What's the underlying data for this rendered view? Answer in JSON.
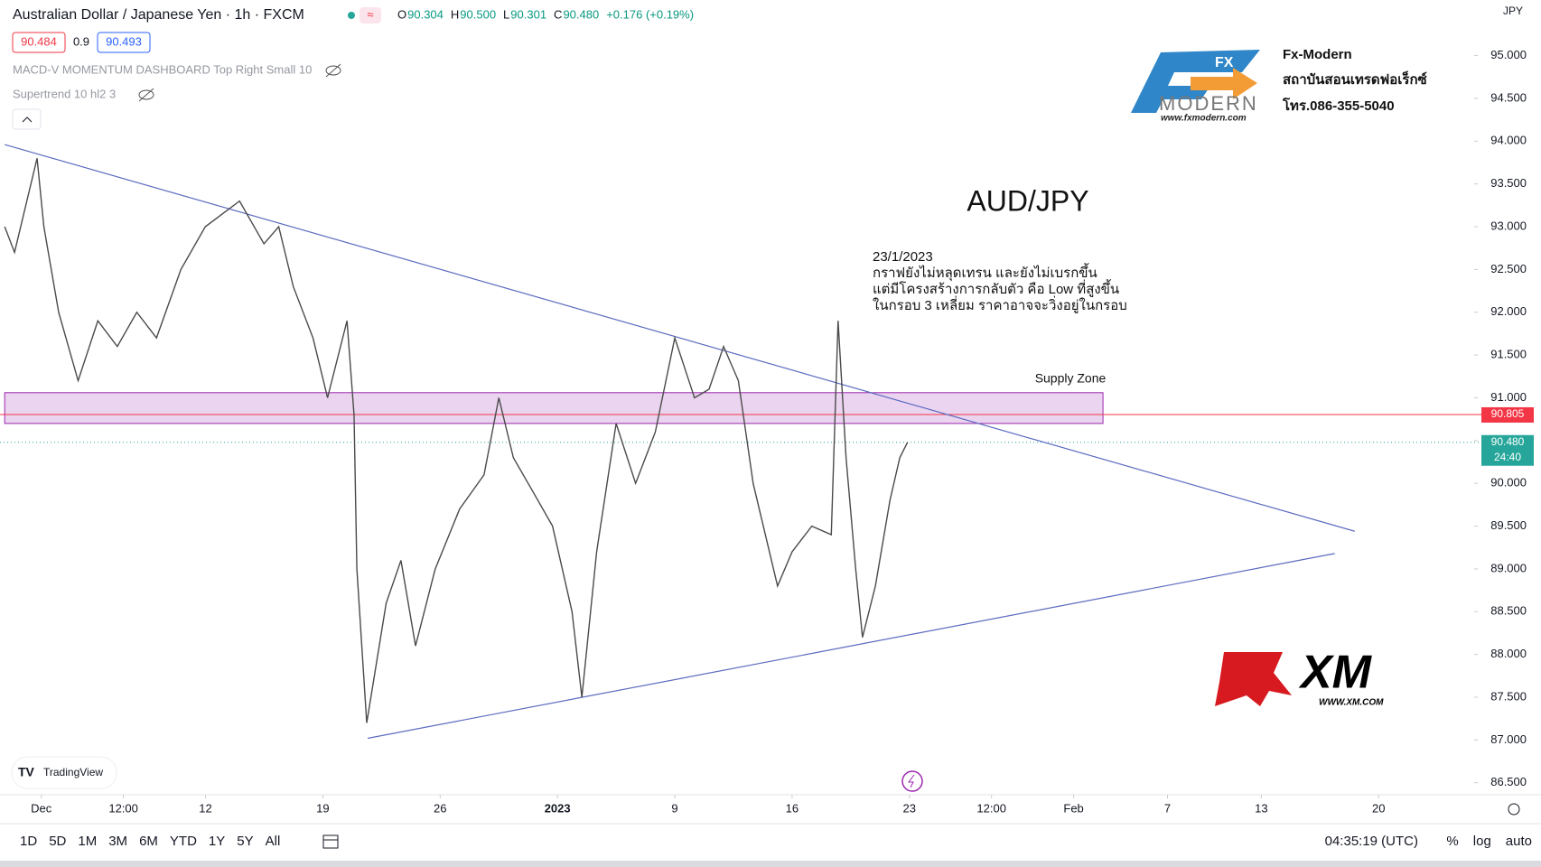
{
  "header": {
    "symbol": "Australian Dollar / Japanese Yen · 1h · FXCM",
    "ohlc": [
      {
        "k": "O",
        "v": "90.304"
      },
      {
        "k": "H",
        "v": "90.500"
      },
      {
        "k": "L",
        "v": "90.301"
      },
      {
        "k": "C",
        "v": "90.480"
      }
    ],
    "change": "+0.176 (+0.19%)",
    "bid": "90.484",
    "spread": "0.9",
    "ask": "90.493",
    "indicators": [
      "MACD-V MOMENTUM DASHBOARD Top Right Small 10",
      "Supertrend 10 hl2 3"
    ],
    "currency": "JPY"
  },
  "logos": {
    "fx_brand": "FX",
    "fx_sub": "MODERN",
    "fx_url": "www.fxmodern.com",
    "fx_lines": [
      "Fx-Modern",
      "สถาบันสอนเทรดฟอเร็กซ์",
      "โทร.086-355-5040"
    ],
    "xm": "XM",
    "xm_url": "WWW.XM.COM",
    "tradingview": "TradingView"
  },
  "chart_data": {
    "type": "line",
    "title": "AUD/JPY",
    "color": "#4a4a4a",
    "annotation": [
      "23/1/2023",
      "กราฟยังไม่หลุดเทรน และยังไม่เบรกขึ้น",
      "แต่มีโครงสร้างการกลับตัว คือ Low ที่สูงขึ้น",
      "ในกรอบ 3 เหลี่ยม ราคาอาจจะวิ่งอยู่ในกรอบ"
    ],
    "supply_zone_label": "Supply Zone",
    "x": [
      -1.56,
      -1.14,
      -0.18,
      0.11,
      0.74,
      1.57,
      2.41,
      3.24,
      4.07,
      4.91,
      5.95,
      6.99,
      8.45,
      9.49,
      10.12,
      10.74,
      11.58,
      12.2,
      13.03,
      13.33,
      13.45,
      13.87,
      14.7,
      15.33,
      15.95,
      16.79,
      17.83,
      18.87,
      19.5,
      20.12,
      20.96,
      21.79,
      22.62,
      23.04,
      23.67,
      24.5,
      25.33,
      26.17,
      27.0,
      27.84,
      28.46,
      29.08,
      29.71,
      30.34,
      31.38,
      32.0,
      32.84,
      33.67,
      33.96,
      34.3,
      34.71,
      35.0,
      35.55,
      36.17,
      36.59,
      36.92
    ],
    "values": [
      93.0,
      92.7,
      93.8,
      93.0,
      92.0,
      91.2,
      91.9,
      91.6,
      92.0,
      91.7,
      92.5,
      93.0,
      93.3,
      92.8,
      93.0,
      92.3,
      91.7,
      91.0,
      91.9,
      90.8,
      89.0,
      87.2,
      88.6,
      89.1,
      88.1,
      89.0,
      89.7,
      90.1,
      91.0,
      90.3,
      89.9,
      89.5,
      88.5,
      87.5,
      89.2,
      90.7,
      90.0,
      90.6,
      91.7,
      91.0,
      91.1,
      91.6,
      91.2,
      90.0,
      88.8,
      89.2,
      89.5,
      89.4,
      91.9,
      90.3,
      89.0,
      88.2,
      88.8,
      89.8,
      90.3,
      90.48
    ],
    "xlim": [
      -1.76,
      61.07
    ],
    "ylim": [
      86.36,
      95.65
    ],
    "xticks": [
      {
        "value": 0,
        "label": "Dec"
      },
      {
        "value": 3.5,
        "label": "12:00"
      },
      {
        "value": 7,
        "label": "12"
      },
      {
        "value": 12,
        "label": "19"
      },
      {
        "value": 17,
        "label": "26"
      },
      {
        "value": 22,
        "label": "2023"
      },
      {
        "value": 27,
        "label": "9"
      },
      {
        "value": 32,
        "label": "16"
      },
      {
        "value": 37,
        "label": "23"
      },
      {
        "value": 40.5,
        "label": "12:00"
      },
      {
        "value": 44,
        "label": "Feb"
      },
      {
        "value": 48,
        "label": "7"
      },
      {
        "value": 52,
        "label": "13"
      },
      {
        "value": 57,
        "label": "20"
      }
    ],
    "yticks": [
      {
        "value": 86.5,
        "label": "86.500"
      },
      {
        "value": 87,
        "label": "87.000"
      },
      {
        "value": 87.5,
        "label": "87.500"
      },
      {
        "value": 88,
        "label": "88.000"
      },
      {
        "value": 88.5,
        "label": "88.500"
      },
      {
        "value": 89,
        "label": "89.000"
      },
      {
        "value": 89.5,
        "label": "89.500"
      },
      {
        "value": 90,
        "label": "90.000"
      },
      {
        "value": 90.5,
        "label": "90.500"
      },
      {
        "value": 91,
        "label": "91.000"
      },
      {
        "value": 91.5,
        "label": "91.500"
      },
      {
        "value": 92,
        "label": "92.000"
      },
      {
        "value": 92.5,
        "label": "92.500"
      },
      {
        "value": 93,
        "label": "93.000"
      },
      {
        "value": 93.5,
        "label": "93.500"
      },
      {
        "value": 94,
        "label": "94.000"
      },
      {
        "value": 94.5,
        "label": "94.500"
      },
      {
        "value": 95,
        "label": "95.000"
      }
    ],
    "supply_zone": {
      "x": [
        -1.56,
        45.25
      ],
      "y": [
        90.7,
        91.06
      ],
      "color": "#ce93d8"
    },
    "trendlines": [
      {
        "x": [
          -1.56,
          55.98
        ],
        "y": [
          93.96,
          89.44
        ],
        "color": "#5c6bc0"
      },
      {
        "x": [
          13.91,
          55.13
        ],
        "y": [
          87.02,
          89.18
        ],
        "color": "#5c6bc0"
      }
    ],
    "price_lines": [
      {
        "value": 90.805,
        "color": "#f23645"
      },
      {
        "value": 90.48,
        "label": "90.480",
        "countdown": "24:40",
        "color": "#26a69a"
      }
    ]
  },
  "toolbar": {
    "ranges": [
      "1D",
      "5D",
      "1M",
      "3M",
      "6M",
      "YTD",
      "1Y",
      "5Y",
      "All"
    ],
    "clock": "04:35:19 (UTC)",
    "options": [
      "%",
      "log",
      "auto"
    ]
  }
}
